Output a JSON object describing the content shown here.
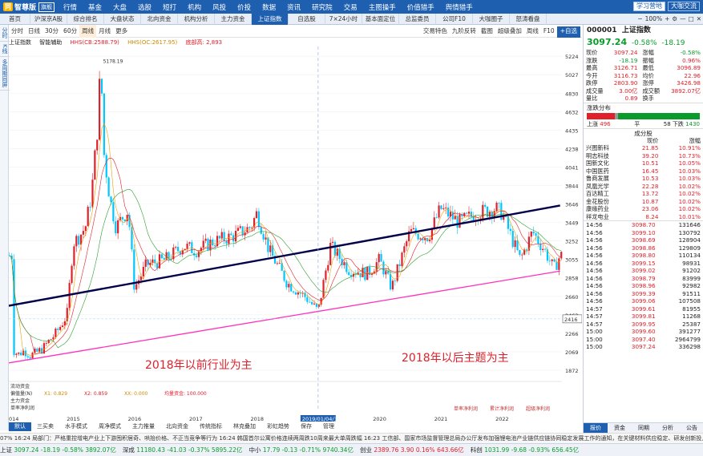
{
  "app": {
    "logo_badge": "同",
    "title": "智尊版",
    "version": "旗舰"
  },
  "menu": [
    "行情",
    "基金",
    "大盘",
    "选股",
    "短打",
    "机构",
    "风投",
    "价投",
    "数据",
    "资讯",
    "研究院",
    "交易",
    "主图操手",
    "价值猎手",
    "舆情猎手"
  ],
  "menu_right": {
    "learn": "学习营地",
    "chat": "大咖交流"
  },
  "tabs": [
    {
      "label": "首页",
      "w": 38
    },
    {
      "label": "沪深京A股",
      "w": 46
    },
    {
      "label": "综合排名",
      "w": 46
    },
    {
      "label": "大盘状态",
      "w": 46
    },
    {
      "label": "北向资金",
      "w": 46
    },
    {
      "label": "机构分析",
      "w": 46
    },
    {
      "label": "主力资金",
      "w": 46
    },
    {
      "label": "上证指数",
      "w": 46,
      "active": true
    },
    {
      "label": "自选股",
      "w": 46
    },
    {
      "label": "7×24小时",
      "w": 46
    },
    {
      "label": "基本面定位",
      "w": 46
    },
    {
      "label": "总监委员",
      "w": 46
    },
    {
      "label": "公司F10",
      "w": 46
    },
    {
      "label": "大咖圈子",
      "w": 46
    },
    {
      "label": "怒涛看盘",
      "w": 46
    }
  ],
  "tabs_right": {
    "zoom": "100%",
    "plus": "+",
    "minus": "−"
  },
  "left_strip": [
    "分时",
    "K线",
    "多周期同屏"
  ],
  "chart_tools": {
    "periods": [
      "分时",
      "日线",
      "30分",
      "60分",
      "周线",
      "月线",
      "更多"
    ],
    "active_period": "周线",
    "right": [
      "交易特色",
      "九阶反转",
      "截图",
      "超级叠加",
      "周线",
      "F10"
    ],
    "add_button": "+自选"
  },
  "legend": {
    "name": "上证指数",
    "smart": "智能辅助",
    "ma1": "HHS(CB:2588.79)",
    "ma2": "HHS(OC:2617.95)",
    "ma3": "底部高: 2,893"
  },
  "colors": {
    "up": "#e0202a",
    "down": "#00c6ff",
    "trend": "#00004a",
    "support": "#ff2fbf"
  },
  "chart_data": {
    "type": "candlestick",
    "title": "上证指数",
    "y_axis_ticks": [
      5224,
      5027,
      4830,
      4632,
      4435,
      4238,
      4041,
      3844,
      3646,
      3449,
      3252,
      3055,
      2858,
      2660,
      2463,
      2266,
      2069,
      1872
    ],
    "x_axis_labels": [
      "2014",
      "2015",
      "2016",
      "2017",
      "2018",
      "2019/01/04/五",
      "2020",
      "2021",
      "2022"
    ],
    "peak_label": "5178.19",
    "low_label": "2416",
    "crosshair_label": "2019/01/04/五",
    "weekly_close_approx": [
      [
        2014.0,
        2100
      ],
      [
        2014.1,
        2040
      ],
      [
        2014.2,
        2080
      ],
      [
        2014.3,
        2030
      ],
      [
        2014.4,
        2060
      ],
      [
        2014.5,
        2100
      ],
      [
        2014.6,
        2180
      ],
      [
        2014.7,
        2250
      ],
      [
        2014.8,
        2350
      ],
      [
        2014.9,
        2460
      ],
      [
        2015.0,
        3230
      ],
      [
        2015.1,
        3300
      ],
      [
        2015.2,
        3400
      ],
      [
        2015.3,
        3750
      ],
      [
        2015.4,
        4480
      ],
      [
        2015.45,
        5178
      ],
      [
        2015.5,
        4200
      ],
      [
        2015.6,
        3700
      ],
      [
        2015.7,
        3400
      ],
      [
        2015.8,
        3500
      ],
      [
        2015.9,
        3580
      ],
      [
        2016.0,
        2750
      ],
      [
        2016.2,
        3000
      ],
      [
        2016.5,
        3050
      ],
      [
        2016.8,
        3200
      ],
      [
        2017.0,
        3150
      ],
      [
        2017.3,
        3250
      ],
      [
        2017.6,
        3300
      ],
      [
        2017.9,
        3400
      ],
      [
        2018.0,
        3550
      ],
      [
        2018.2,
        3150
      ],
      [
        2018.5,
        2800
      ],
      [
        2018.8,
        2650
      ],
      [
        2019.0,
        2500
      ],
      [
        2019.2,
        3200
      ],
      [
        2019.5,
        2950
      ],
      [
        2019.8,
        2900
      ],
      [
        2020.0,
        3050
      ],
      [
        2020.2,
        2750
      ],
      [
        2020.5,
        3350
      ],
      [
        2020.8,
        3300
      ],
      [
        2021.0,
        3600
      ],
      [
        2021.3,
        3450
      ],
      [
        2021.6,
        3550
      ],
      [
        2021.9,
        3600
      ],
      [
        2022.0,
        3550
      ],
      [
        2022.3,
        3050
      ],
      [
        2022.5,
        3350
      ],
      [
        2022.7,
        3150
      ],
      [
        2022.85,
        2950
      ],
      [
        2022.95,
        3097
      ]
    ],
    "trend_line": [
      [
        2013.95,
        2560
      ],
      [
        2022.95,
        3630
      ]
    ],
    "support_line": [
      [
        2013.95,
        1950
      ],
      [
        2022.95,
        2930
      ]
    ],
    "annotations": [
      {
        "text": "2018年以前行业为主",
        "color": "#e0202a"
      },
      {
        "text": "2018年以后主题为主",
        "color": "#e0202a"
      }
    ],
    "sub_indicators": [
      "流动资金",
      "偏值量(N)",
      "主力资金",
      "单率净利润"
    ],
    "sub_values": [
      "X1: 0.829",
      "X2: 0.859",
      "XX: 0.000",
      "均量资金: 100.000"
    ]
  },
  "bottom_tabs": [
    "默认",
    "三买卖",
    "水手模式",
    "周净模式",
    "主力推量",
    "北向资金",
    "传统指标",
    "林克叠加",
    "彩虹趋势",
    "保存",
    "管理"
  ],
  "right_chart_labels": [
    "单率净利润",
    "累计净利润",
    "超级净利润"
  ],
  "side": {
    "code": "000001",
    "name": "上证指数",
    "price": "3097.24",
    "change_pct": "-0.58%",
    "change": "-18.19",
    "quote_rows": [
      [
        "现价",
        "3097.24",
        "涨幅",
        "-0.58%"
      ],
      [
        "涨跌",
        "-18.19",
        "振幅",
        "0.96%"
      ],
      [
        "最高",
        "3126.71",
        "最低",
        "3096.89"
      ],
      [
        "今开",
        "3116.73",
        "均价",
        "22.96"
      ],
      [
        "跌停",
        "2803.90",
        "涨停",
        "3426.98"
      ],
      [
        "成交量",
        "3.00亿",
        "成交额",
        "3892.07亿"
      ],
      [
        "量比",
        "0.89",
        "换手",
        ""
      ]
    ],
    "dist_title": "涨跌分布",
    "up_count": "496",
    "flat_count": "58",
    "down_count": "1430",
    "up_label": "上涨",
    "flat_label": "平",
    "down_label": "下跌",
    "stocks_title": "成分股",
    "stocks_header": [
      "",
      "现价",
      "涨幅"
    ],
    "stocks": [
      [
        "兴图新科",
        "21.85",
        "10.91%"
      ],
      [
        "明志科技",
        "39.20",
        "10.73%"
      ],
      [
        "国新文化",
        "10.51",
        "10.05%"
      ],
      [
        "中国医药",
        "16.45",
        "10.03%"
      ],
      [
        "鲁商发展",
        "10.53",
        "10.03%"
      ],
      [
        "凤凰光学",
        "22.28",
        "10.02%"
      ],
      [
        "百达精工",
        "13.72",
        "10.02%"
      ],
      [
        "金花股份",
        "10.87",
        "10.02%"
      ],
      [
        "康缘药业",
        "23.06",
        "10.02%"
      ],
      [
        "祥龙电业",
        "8.24",
        "10.01%"
      ]
    ],
    "ticks": [
      [
        "14:56",
        "3098.70",
        "131646",
        "up"
      ],
      [
        "14:56",
        "3099.10",
        "130792",
        "up"
      ],
      [
        "14:56",
        "3098.69",
        "128904",
        "up"
      ],
      [
        "14:56",
        "3098.86",
        "129809",
        "up"
      ],
      [
        "14:56",
        "3098.80",
        "110134",
        "up"
      ],
      [
        "14:56",
        "3099.15",
        "98931",
        "up"
      ],
      [
        "14:56",
        "3099.02",
        "91202",
        "up"
      ],
      [
        "14:56",
        "3098.79",
        "83999",
        "up"
      ],
      [
        "14:56",
        "3098.96",
        "92982",
        "up"
      ],
      [
        "14:56",
        "3099.39",
        "91511",
        "up"
      ],
      [
        "14:56",
        "3099.06",
        "107508",
        "up"
      ],
      [
        "14:57",
        "3099.61",
        "81955",
        "up"
      ],
      [
        "14:57",
        "3099.81",
        "11268",
        "up"
      ],
      [
        "14:57",
        "3099.95",
        "25387",
        "up"
      ],
      [
        "15:00",
        "3099.60",
        "391277",
        "up"
      ],
      [
        "15:00",
        "3097.40",
        "2964799",
        "up"
      ],
      [
        "15:00",
        "3097.24",
        "336298",
        "up"
      ]
    ],
    "bottom_tabs": [
      "报价",
      "资金",
      "同期",
      "分析",
      "公告"
    ]
  },
  "ticker": "07%    16:24 局部门：严格重控增电产业上下游囤积居奇、哄抬价格、不正当竞争等行为      16:24 韩国首尔公寓价格连续两周跌10周来最大单周跌幅      16:23 工信部、国家市场监督管理总局办公厅发布加强锂电池产业链供应链协同稳定发展工作的通知，在关键材料供应稳定、研发创新投入投足、配套资金质量将钢的",
  "index_bar": [
    {
      "name": "上证",
      "value": "3097.24",
      "chg": "-18.19",
      "pct": "-0.58%",
      "amt": "3892.07亿",
      "dir": "dn"
    },
    {
      "name": "深成",
      "value": "11180.43",
      "chg": "-41.03",
      "pct": "-0.37%",
      "amt": "5895.22亿",
      "dir": "dn"
    },
    {
      "name": "中小",
      "value": "17.79",
      "chg": "-0.13",
      "pct": "-0.71%",
      "amt": "9740.34亿",
      "dir": "dn"
    },
    {
      "name": "创业",
      "value": "2389.76",
      "chg": "3.90",
      "pct": "0.16%",
      "amt": "643.66亿",
      "dir": "up"
    },
    {
      "name": "科创",
      "value": "1031.99",
      "chg": "-9.68",
      "pct": "-0.93%",
      "amt": "656.45亿",
      "dir": "dn"
    }
  ]
}
